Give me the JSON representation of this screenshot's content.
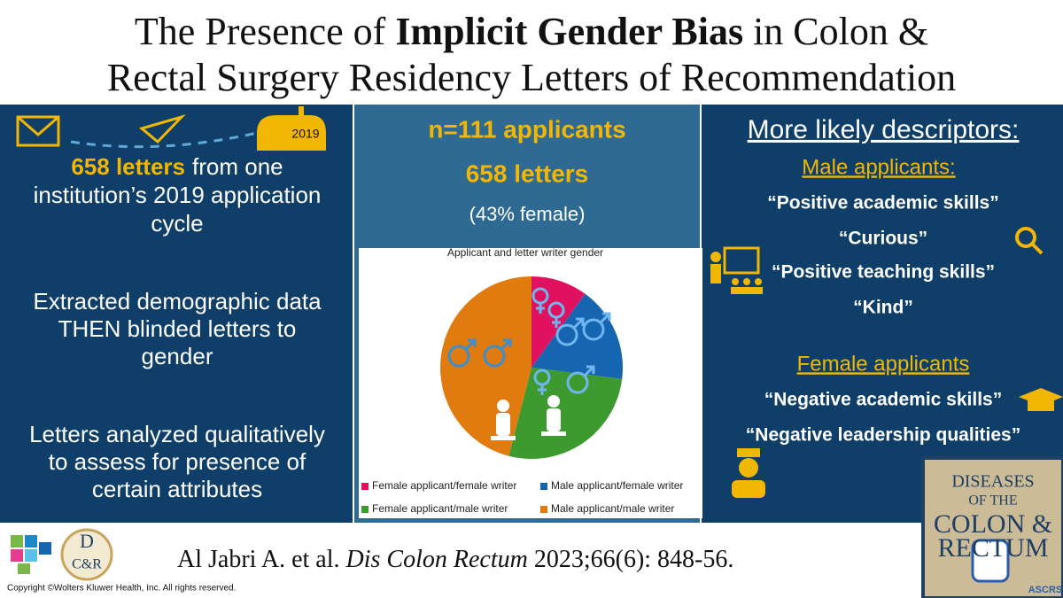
{
  "header": {
    "title_parts": [
      "The Presence of ",
      "Implicit Gender Bias",
      " in Colon &",
      "Rectal Surgery Residency Letters of Recommendation"
    ]
  },
  "left": {
    "mailbox_year": "2019",
    "item1": {
      "highlight": "658 letters",
      "lines": [
        "from one",
        "institution’s 2019 application",
        "cycle"
      ]
    },
    "item2": {
      "lines": [
        "Extracted demographic data",
        "THEN blinded letters to",
        "gender"
      ]
    },
    "item3": {
      "lines": [
        "Letters analyzed qualitatively",
        "to assess for presence of",
        "certain attributes"
      ]
    }
  },
  "middle": {
    "applicants": "n=111 applicants",
    "letters": "658 letters",
    "female_share": "(43% female)"
  },
  "chart_data": {
    "type": "pie",
    "title": "Applicant and letter writer gender",
    "categories": [
      "Female applicant/female writer",
      "Male applicant/female writer",
      "Female applicant/male writer",
      "Male applicant/male writer"
    ],
    "values": [
      10,
      17,
      27,
      46
    ],
    "colors": [
      "#e0115f",
      "#1565b0",
      "#3c9a2e",
      "#e07b10"
    ],
    "legend": "bottom"
  },
  "right": {
    "heading": "More likely descriptors:",
    "male_heading": "Male applicants:",
    "male_items": [
      "“Positive academic skills”",
      "“Curious”",
      "“Positive teaching skills”",
      "“Kind”"
    ],
    "female_heading": "Female applicants",
    "female_items": [
      "“Negative academic skills”",
      "“Negative leadership qualities”"
    ]
  },
  "journal_logo": {
    "lines": [
      "DISEASES",
      "OF THE",
      "COLON &",
      "RECTUM"
    ],
    "society": "ASCRS"
  },
  "dcr_logo": {
    "top": "D",
    "bottom": "C&R"
  },
  "footer": {
    "citation": [
      "Al Jabri A. et al. ",
      "Dis Colon Rectum",
      " 2023;66(6): 848-56."
    ],
    "copyright": "Copyright ©Wolters Kluwer Health, Inc. All rights reserved."
  }
}
